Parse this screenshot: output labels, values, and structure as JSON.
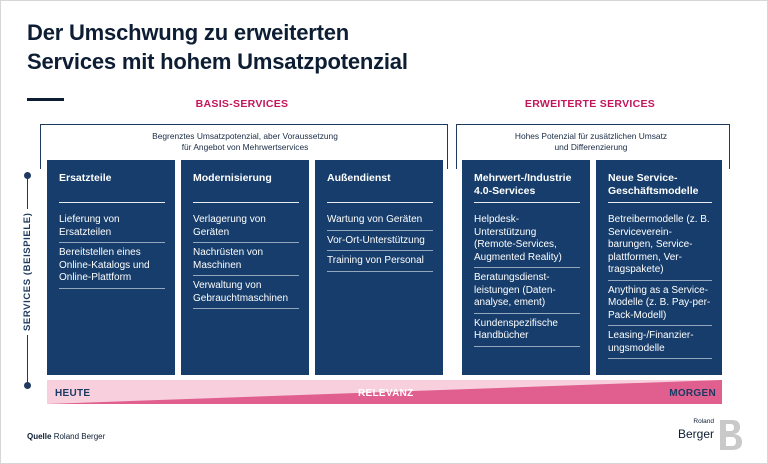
{
  "title_line1": "Der Umschwung zu erweiterten",
  "title_line2": "Services mit hohem Umsatzpotenzial",
  "groups": [
    {
      "title": "BASIS-SERVICES",
      "note_line1": "Begrenztes Umsatzpotenzial, aber Voraussetzung",
      "note_line2": "für Angebot von Mehrwertservices"
    },
    {
      "title": "ERWEITERTE SERVICES",
      "note_line1": "Hohes Potenzial für zusätzlichen Umsatz",
      "note_line2": "und Differenzierung"
    }
  ],
  "side_label": "SERVICES (BEISPIELE)",
  "boxes": [
    {
      "heading_line1": "Ersatzteile",
      "heading_line2": "",
      "items": [
        "Lieferung von Ersatzteilen",
        "Bereitstellen eines Online-Katalogs und Online-Plattform"
      ]
    },
    {
      "heading_line1": "Modernisierung",
      "heading_line2": "",
      "items": [
        "Verlagerung von Geräten",
        "Nachrüsten von Maschinen",
        "Verwaltung von Gebrauchtmaschinen"
      ]
    },
    {
      "heading_line1": "Außendienst",
      "heading_line2": "",
      "items": [
        "Wartung von Geräten",
        "Vor-Ort-Unterstützung",
        "Training von Personal"
      ]
    },
    {
      "heading_line1": "Mehrwert-/Industrie",
      "heading_line2": "4.0-Services",
      "items": [
        "Helpdesk-Unterstützung (Remote-Services, Augmented Reality)",
        "Beratungsdienst-leistungen (Daten-analyse, ement)",
        "Kundenspezifische Handbücher"
      ]
    },
    {
      "heading_line1": "Neue Service-",
      "heading_line2": "Geschäftsmodelle",
      "items": [
        "Betreibermodelle (z. B. Serviceverein-barungen, Service-plattformen, Ver-tragspakete)",
        "Anything as a Service-Modelle (z. B. Pay-per-Pack-Modell)",
        "Leasing-/Finanzier-ungsmodelle"
      ]
    }
  ],
  "relevance": {
    "left": "HEUTE",
    "middle": "RELEVANZ",
    "right": "MORGEN",
    "color_light": "#f7cfdd",
    "color_dark": "#e05f8e"
  },
  "source_label": "Quelle",
  "source_value": "Roland Berger",
  "logo_small": "Roland",
  "logo_main": "Berger",
  "colors": {
    "box": "#163d6b",
    "accent": "#c4145a",
    "title": "#0d1d33"
  }
}
